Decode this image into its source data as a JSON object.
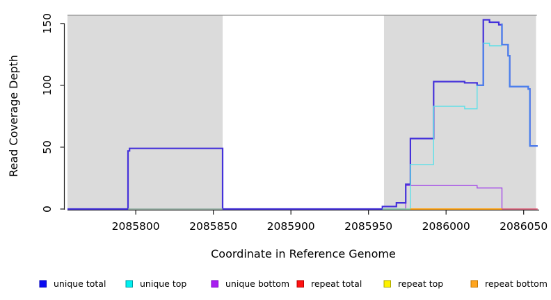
{
  "figure": {
    "background": "#ffffff"
  },
  "chart_data": {
    "type": "line",
    "step": true,
    "title": "",
    "xlabel": "Coordinate in Reference Genome",
    "ylabel": "Read Coverage Depth",
    "xlim": [
      2085756,
      2086060
    ],
    "ylim": [
      0,
      157
    ],
    "grid": false,
    "x_ticks": [
      2085800,
      2085850,
      2085900,
      2085950,
      2086000,
      2086050
    ],
    "y_ticks": [
      0,
      50,
      100,
      150
    ],
    "plot_background": "#ffffff",
    "shaded_regions": [
      {
        "x0": 2085756,
        "x1": 2085856,
        "fill": "#dbdbdb"
      },
      {
        "x0": 2085960,
        "x1": 2086058,
        "fill": "#dbdbdb"
      }
    ],
    "region_top_border": {
      "y": 157,
      "color": "#8f8f8f"
    },
    "series": [
      {
        "name": "unique total",
        "color": "#2a1fd6",
        "points": [
          [
            2085756,
            0
          ],
          [
            2085795,
            0
          ],
          [
            2085795,
            47
          ],
          [
            2085796,
            47
          ],
          [
            2085796,
            49
          ],
          [
            2085856,
            49
          ],
          [
            2085856,
            0
          ],
          [
            2085959,
            0
          ],
          [
            2085959,
            2
          ],
          [
            2085968,
            2
          ],
          [
            2085968,
            5
          ],
          [
            2085974,
            5
          ],
          [
            2085974,
            20
          ],
          [
            2085977,
            20
          ],
          [
            2085977,
            57
          ],
          [
            2085992,
            57
          ],
          [
            2085992,
            103
          ],
          [
            2086012,
            103
          ],
          [
            2086012,
            102
          ],
          [
            2086020,
            102
          ],
          [
            2086020,
            100
          ],
          [
            2086024,
            100
          ],
          [
            2086024,
            153
          ],
          [
            2086028,
            153
          ],
          [
            2086028,
            151
          ],
          [
            2086034,
            151
          ],
          [
            2086034,
            149
          ],
          [
            2086036,
            149
          ],
          [
            2086036,
            133
          ],
          [
            2086040,
            133
          ],
          [
            2086040,
            124
          ],
          [
            2086041,
            124
          ],
          [
            2086041,
            99
          ],
          [
            2086053,
            99
          ],
          [
            2086053,
            97
          ],
          [
            2086054,
            97
          ],
          [
            2086054,
            51
          ],
          [
            2086059,
            51
          ]
        ]
      },
      {
        "name": "unique top",
        "color": "#00e5e5",
        "points": [
          [
            2085959,
            0
          ],
          [
            2085977,
            0
          ],
          [
            2085977,
            36
          ],
          [
            2085992,
            36
          ],
          [
            2085992,
            83
          ],
          [
            2086012,
            83
          ],
          [
            2086012,
            81
          ],
          [
            2086020,
            81
          ],
          [
            2086020,
            100
          ],
          [
            2086024,
            100
          ],
          [
            2086024,
            134
          ],
          [
            2086028,
            134
          ],
          [
            2086028,
            132
          ],
          [
            2086036,
            132
          ],
          [
            2086036,
            133
          ],
          [
            2086040,
            133
          ],
          [
            2086040,
            124
          ],
          [
            2086041,
            124
          ],
          [
            2086041,
            99
          ],
          [
            2086053,
            99
          ],
          [
            2086053,
            97
          ],
          [
            2086054,
            97
          ],
          [
            2086054,
            51
          ],
          [
            2086059,
            51
          ]
        ]
      },
      {
        "name": "unique bottom",
        "color": "#a020f0",
        "points": [
          [
            2085756,
            0
          ],
          [
            2085974,
            0
          ],
          [
            2085974,
            19
          ],
          [
            2086020,
            19
          ],
          [
            2086020,
            17
          ],
          [
            2086036,
            17
          ],
          [
            2086036,
            0
          ]
        ]
      },
      {
        "name": "repeat total",
        "color": "#e8204c",
        "points": [
          [
            2086036,
            0
          ],
          [
            2086059,
            0
          ]
        ]
      },
      {
        "name": "repeat top",
        "color": "#ffff00",
        "points": [
          [
            2085795,
            0
          ],
          [
            2086059,
            0
          ]
        ]
      },
      {
        "name": "repeat bottom",
        "color": "#ff9c00",
        "points": [
          [
            2085977,
            0
          ],
          [
            2086036,
            0
          ]
        ]
      }
    ],
    "render_layers": [
      {
        "name": "unique-bottom",
        "color": "#a44be8",
        "w": 1.4,
        "pts": [
          [
            2085756,
            0
          ],
          [
            2085974,
            0
          ],
          [
            2085974,
            19
          ],
          [
            2086020,
            19
          ],
          [
            2086020,
            17
          ],
          [
            2086036,
            17
          ],
          [
            2086036,
            0
          ]
        ]
      },
      {
        "name": "unique-total",
        "color": "#4431da",
        "w": 2.2,
        "pts": [
          [
            2085756,
            0
          ],
          [
            2085795,
            0
          ],
          [
            2085795,
            47
          ],
          [
            2085796,
            47
          ],
          [
            2085796,
            49
          ],
          [
            2085856,
            49
          ],
          [
            2085856,
            0
          ],
          [
            2085959,
            0
          ],
          [
            2085959,
            2
          ],
          [
            2085968,
            2
          ],
          [
            2085968,
            5
          ],
          [
            2085974,
            5
          ],
          [
            2085974,
            20
          ],
          [
            2085977,
            20
          ],
          [
            2085977,
            57
          ],
          [
            2085992,
            57
          ],
          [
            2085992,
            103
          ],
          [
            2086012,
            103
          ],
          [
            2086012,
            102
          ],
          [
            2086020,
            102
          ],
          [
            2086020,
            100
          ],
          [
            2086024,
            100
          ],
          [
            2086024,
            153
          ],
          [
            2086028,
            153
          ],
          [
            2086028,
            151
          ],
          [
            2086034,
            151
          ],
          [
            2086034,
            149
          ],
          [
            2086036,
            149
          ],
          [
            2086036,
            133
          ],
          [
            2086040,
            133
          ],
          [
            2086040,
            124
          ],
          [
            2086041,
            124
          ],
          [
            2086041,
            99
          ],
          [
            2086053,
            99
          ],
          [
            2086053,
            97
          ],
          [
            2086054,
            97
          ],
          [
            2086054,
            51
          ],
          [
            2086059,
            51
          ]
        ]
      },
      {
        "name": "unique-top",
        "color": "#5ee0e8",
        "w": 1.4,
        "pts": [
          [
            2085959,
            0
          ],
          [
            2085977,
            0
          ],
          [
            2085977,
            36
          ],
          [
            2085992,
            36
          ],
          [
            2085992,
            83
          ],
          [
            2086012,
            83
          ],
          [
            2086012,
            81
          ],
          [
            2086020,
            81
          ],
          [
            2086020,
            100
          ],
          [
            2086024,
            100
          ],
          [
            2086024,
            134
          ],
          [
            2086028,
            134
          ],
          [
            2086028,
            132
          ],
          [
            2086036,
            132
          ]
        ]
      },
      {
        "name": "baseline-blend-left",
        "color": "#8fd08f",
        "w": 1.3,
        "pts": [
          [
            2085795,
            0
          ],
          [
            2085856,
            0
          ]
        ]
      },
      {
        "name": "baseline-blend-mid",
        "color": "#8fd08f",
        "w": 1.3,
        "pts": [
          [
            2085959,
            0
          ],
          [
            2085977,
            0
          ]
        ]
      },
      {
        "name": "repeat-bottom",
        "color": "#ffa519",
        "w": 2,
        "pts": [
          [
            2085977,
            0
          ],
          [
            2086036,
            0
          ]
        ]
      },
      {
        "name": "repeat-total",
        "color": "#e0506e",
        "w": 1.4,
        "pts": [
          [
            2086036,
            0
          ],
          [
            2086059,
            0
          ]
        ]
      },
      {
        "name": "total-top-overlap-a",
        "color": "#4b80ec",
        "w": 2.2,
        "pts": [
          [
            2086020,
            100
          ],
          [
            2086024,
            100
          ],
          [
            2086024,
            134
          ]
        ]
      },
      {
        "name": "total-top-overlap-b",
        "color": "#4b80ec",
        "w": 2.2,
        "pts": [
          [
            2086036,
            150
          ],
          [
            2086036,
            133
          ],
          [
            2086040,
            133
          ],
          [
            2086040,
            124
          ],
          [
            2086041,
            124
          ],
          [
            2086041,
            99
          ],
          [
            2086053,
            99
          ],
          [
            2086053,
            97
          ],
          [
            2086054,
            97
          ],
          [
            2086054,
            51
          ],
          [
            2086059,
            51
          ]
        ]
      }
    ]
  },
  "legend": {
    "items": [
      {
        "label": "unique total",
        "fill": "#0b0bf0",
        "border": "#0000b8"
      },
      {
        "label": "unique top",
        "fill": "#00f0f0",
        "border": "#009aa0"
      },
      {
        "label": "unique bottom",
        "fill": "#a81ef0",
        "border": "#7a00c4"
      },
      {
        "label": "repeat total",
        "fill": "#ff1212",
        "border": "#b40000"
      },
      {
        "label": "repeat top",
        "fill": "#fef200",
        "border": "#a8a400"
      },
      {
        "label": "repeat bottom",
        "fill": "#ffa51e",
        "border": "#c27400"
      }
    ]
  }
}
